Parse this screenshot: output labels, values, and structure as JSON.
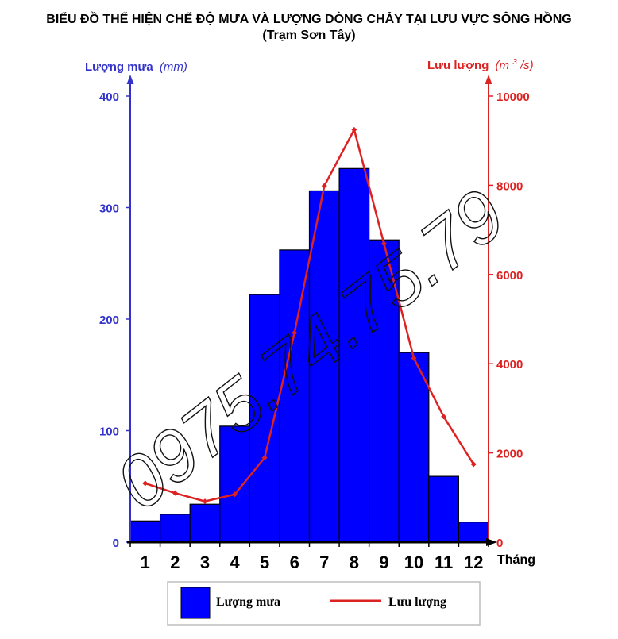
{
  "title": "BIỂU ĐỒ THỂ HIỆN CHẾ ĐỘ MƯA VÀ LƯỢNG DÒNG CHẢY TẠI LƯU VỰC SÔNG HỒNG",
  "subtitle": "(Trạm Sơn Tây)",
  "watermark": "0975.74.75.79",
  "chart_data": {
    "type": "bar",
    "categories": [
      "1",
      "2",
      "3",
      "4",
      "5",
      "6",
      "7",
      "8",
      "9",
      "10",
      "11",
      "12"
    ],
    "xlabel": "Tháng",
    "y_left": {
      "label": "Lượng mưa",
      "unit": "(mm)",
      "ylim": [
        0,
        400
      ],
      "ticks": [
        0,
        100,
        200,
        300,
        400
      ],
      "color": "#3333cc"
    },
    "y_right": {
      "label": "Lưu lượng",
      "unit_prefix": "(m",
      "unit_sup": "3",
      "unit_suffix": "/s)",
      "ylim": [
        0,
        10000
      ],
      "ticks": [
        0,
        2000,
        4000,
        6000,
        8000,
        10000
      ],
      "color": "#dd2222"
    },
    "series": [
      {
        "name": "Lượng mưa",
        "type": "bar",
        "axis": "left",
        "color": "#0000ff",
        "values": [
          19,
          25,
          34,
          104,
          222,
          262,
          315,
          335,
          271,
          170,
          59,
          18
        ]
      },
      {
        "name": "Lưu lượng",
        "type": "line",
        "axis": "right",
        "color": "#dd2222",
        "values": [
          1318,
          1100,
          914,
          1071,
          1893,
          4692,
          7986,
          9246,
          6690,
          4122,
          2813,
          1746
        ]
      }
    ],
    "legend": "bottom",
    "grid": false
  }
}
